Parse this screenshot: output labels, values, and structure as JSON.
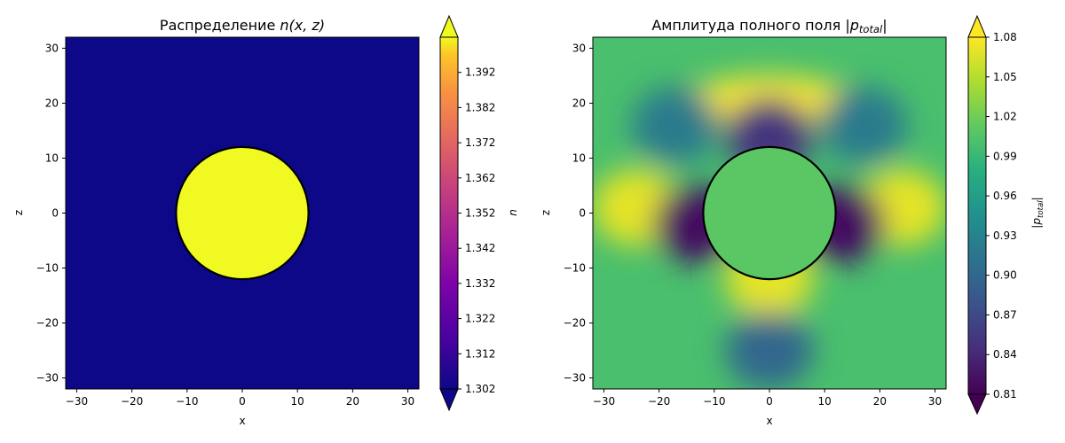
{
  "chart_data": [
    {
      "type": "heatmap",
      "title_prefix": "Распределение ",
      "title_math": "n(x, z)",
      "xlabel": "x",
      "ylabel": "z",
      "xlim": [
        -32,
        32
      ],
      "ylim": [
        -32,
        32
      ],
      "xticks": [
        -30,
        -20,
        -10,
        0,
        10,
        20,
        30
      ],
      "yticks": [
        -30,
        -20,
        -10,
        0,
        10,
        20,
        30
      ],
      "background_value": 1.302,
      "circle": {
        "center": [
          0,
          0
        ],
        "radius": 12,
        "value": 1.402
      },
      "colormap": "plasma",
      "colorbar": {
        "label": "n",
        "ticks": [
          "1.302",
          "1.312",
          "1.322",
          "1.332",
          "1.342",
          "1.352",
          "1.362",
          "1.372",
          "1.382",
          "1.392"
        ],
        "range": [
          1.302,
          1.402
        ],
        "extend": "both"
      },
      "grid": false
    },
    {
      "type": "heatmap",
      "title_prefix": "Амплитуда полного поля ",
      "title_math": "|p_total|",
      "xlabel": "x",
      "ylabel": "z",
      "xlim": [
        -32,
        32
      ],
      "ylim": [
        -32,
        32
      ],
      "xticks": [
        -30,
        -20,
        -10,
        0,
        10,
        20,
        30
      ],
      "yticks": [
        -30,
        -20,
        -10,
        0,
        10,
        20,
        30
      ],
      "circle": {
        "center": [
          0,
          0
        ],
        "radius": 12,
        "value": 1.01
      },
      "colormap": "viridis",
      "background_value": 1.0,
      "features": [
        {
          "x": 0,
          "z": 20,
          "value": 1.08
        },
        {
          "x": -24,
          "z": 1,
          "value": 1.07
        },
        {
          "x": 24,
          "z": 1,
          "value": 1.07
        },
        {
          "x": 0,
          "z": -12,
          "value": 1.07
        },
        {
          "x": -13,
          "z": -2,
          "value": 0.82
        },
        {
          "x": 13,
          "z": -2,
          "value": 0.82
        },
        {
          "x": 0,
          "z": 14,
          "value": 0.85
        },
        {
          "x": 0,
          "z": -25,
          "value": 0.9
        },
        {
          "x": -17,
          "z": 16,
          "value": 0.92
        },
        {
          "x": 17,
          "z": 16,
          "value": 0.92
        }
      ],
      "colorbar": {
        "label": "|p_total|",
        "ticks": [
          "0.81",
          "0.84",
          "0.87",
          "0.90",
          "0.93",
          "0.96",
          "0.99",
          "1.02",
          "1.05",
          "1.08"
        ],
        "range": [
          0.81,
          1.08
        ],
        "extend": "both"
      },
      "grid": false
    }
  ]
}
